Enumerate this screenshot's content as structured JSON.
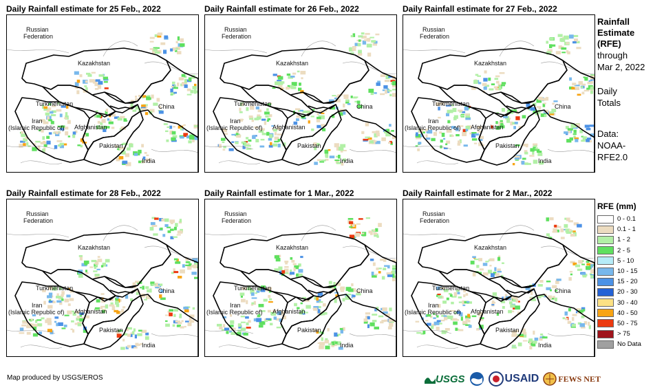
{
  "panels": [
    {
      "title": "Daily Rainfall estimate for 25 Feb., 2022"
    },
    {
      "title": "Daily Rainfall estimate for 26 Feb., 2022"
    },
    {
      "title": "Daily Rainfall estimate for 27 Feb., 2022"
    },
    {
      "title": "Daily Rainfall estimate for 28 Feb., 2022"
    },
    {
      "title": "Daily Rainfall estimate for 1 Mar., 2022"
    },
    {
      "title": "Daily Rainfall estimate for 2 Mar., 2022"
    }
  ],
  "map_labels": {
    "russia_1": "Russian",
    "russia_2": "Federation",
    "kazakhstan": "Kazakhstan",
    "turkmenistan": "Turkmenistan",
    "china": "China",
    "iran_1": "Iran",
    "iran_2": "(Islamic Republic of)",
    "afghanistan": "Afghanistan",
    "pakistan": "Pakistan",
    "india": "India"
  },
  "sidebar": {
    "heading_1": "Rainfall",
    "heading_2": "Estimate",
    "heading_3": "(RFE)",
    "through_1": "through",
    "through_2": "Mar 2, 2022",
    "daily_1": "Daily",
    "daily_2": "Totals",
    "data_1": "Data:",
    "data_2": "NOAA-",
    "data_3": "RFE2.0"
  },
  "legend": {
    "title": "RFE (mm)",
    "items": [
      {
        "label": "0 - 0.1",
        "color": "#ffffff"
      },
      {
        "label": "0.1 - 1",
        "color": "#ecdcc0"
      },
      {
        "label": "1 - 2",
        "color": "#b2f0a6"
      },
      {
        "label": "2 - 5",
        "color": "#5fe05f"
      },
      {
        "label": "5 - 10",
        "color": "#b6ecf8"
      },
      {
        "label": "10 - 15",
        "color": "#78b8ec"
      },
      {
        "label": "15 - 20",
        "color": "#4c92e6"
      },
      {
        "label": "20 - 30",
        "color": "#2462d6"
      },
      {
        "label": "30 - 40",
        "color": "#fce184"
      },
      {
        "label": "40 - 50",
        "color": "#f8a414"
      },
      {
        "label": "50 - 75",
        "color": "#ec3a10"
      },
      {
        "label": "> 75",
        "color": "#a0141c"
      },
      {
        "label": "No Data",
        "color": "#a0a0a0"
      }
    ]
  },
  "footer": "Map produced by USGS/EROS",
  "logos": {
    "usgs": "USGS",
    "usaid": "USAID",
    "fewsnet": "FEWS NET"
  }
}
